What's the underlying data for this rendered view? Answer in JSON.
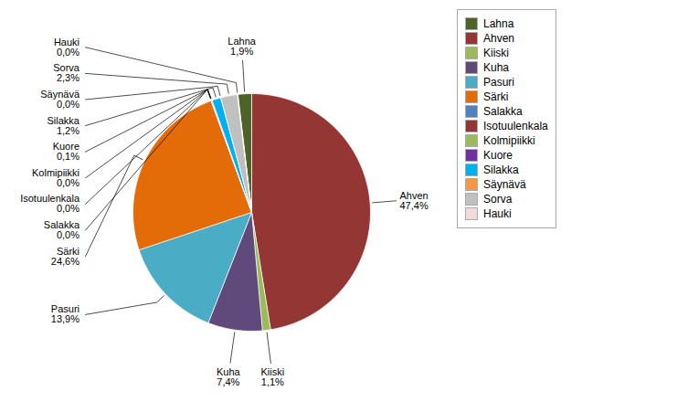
{
  "chart_data": {
    "type": "pie",
    "categories": [
      "Lahna",
      "Ahven",
      "Kiiski",
      "Kuha",
      "Pasuri",
      "Särki",
      "Salakka",
      "Isotuulenkala",
      "Kolmipiikki",
      "Kuore",
      "Silakka",
      "Säynävä",
      "Sorva",
      "Hauki"
    ],
    "values": [
      1.9,
      47.4,
      1.1,
      7.4,
      13.9,
      24.6,
      0.0001,
      0.0001,
      0.0001,
      0.1,
      1.2,
      0.0001,
      2.3,
      0.0001
    ],
    "value_labels": [
      "1,9%",
      "47,4%",
      "1,1%",
      "7,4%",
      "13,9%",
      "24,6%",
      "0,0%",
      "0,0%",
      "0,0%",
      "0,1%",
      "1,2%",
      "0,0%",
      "2,3%",
      "0,0%"
    ],
    "colors": [
      "#4F6228",
      "#943634",
      "#9BBB59",
      "#604A7B",
      "#4BACC6",
      "#E36C09",
      "#4F81BD",
      "#943634",
      "#9BBB59",
      "#7030A0",
      "#00B0F0",
      "#F79646",
      "#C0C0C0",
      "#F2DCDB"
    ],
    "data_labels": true,
    "legend": "right"
  }
}
